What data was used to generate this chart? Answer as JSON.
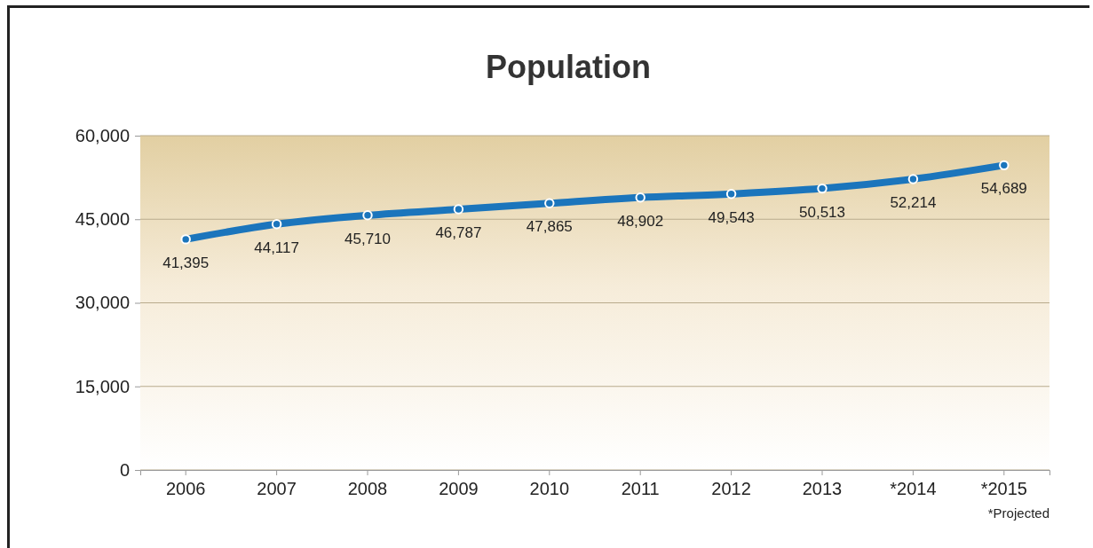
{
  "chart_data": {
    "type": "line",
    "title": "Population",
    "categories": [
      "2006",
      "2007",
      "2008",
      "2009",
      "2010",
      "2011",
      "2012",
      "2013",
      "*2014",
      "*2015"
    ],
    "series": [
      {
        "color": "#1b75bc",
        "values": [
          41395,
          44117,
          45710,
          46787,
          47865,
          48902,
          49543,
          50513,
          52214,
          54689
        ],
        "value_labels": [
          "41,395",
          "44,117",
          "45,710",
          "46,787",
          "47,865",
          "48,902",
          "49,543",
          "50,513",
          "52,214",
          "54,689"
        ]
      }
    ],
    "ylim": [
      0,
      60000
    ],
    "yticks": [
      {
        "value": 0,
        "label": "0"
      },
      {
        "value": 15000,
        "label": "15,000"
      },
      {
        "value": 30000,
        "label": "30,000"
      },
      {
        "value": 45000,
        "label": "45,000"
      },
      {
        "value": 60000,
        "label": "60,000"
      }
    ],
    "grid": "y",
    "marker": "circle",
    "line_style": "solid",
    "annotations": [
      "*Projected"
    ]
  }
}
